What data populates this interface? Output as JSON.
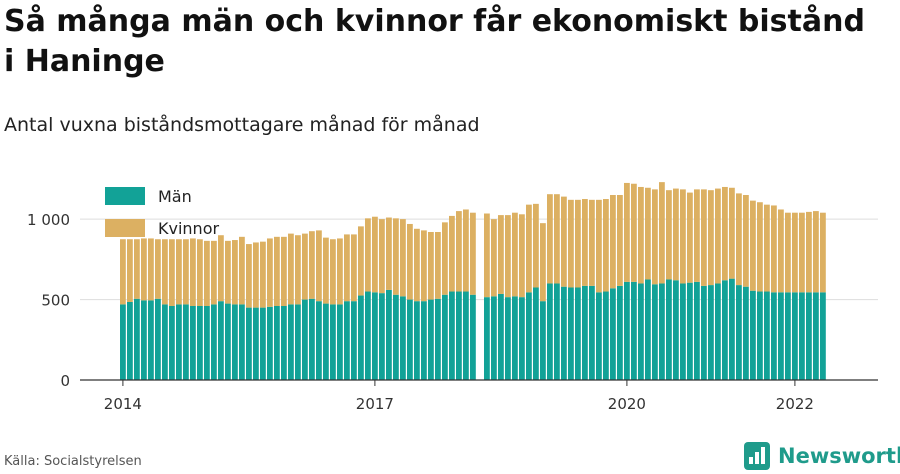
{
  "title": "Så många män och kvinnor får ekonomiskt bistånd i Haninge",
  "subtitle": "Antal vuxna biståndsmottagare månad för månad",
  "source": "Källa: Socialstyrelsen",
  "brand": {
    "name": "Newsworthy",
    "icon": "newsworthy-logo-icon"
  },
  "colors": {
    "men": "#12a297",
    "women": "#dcb062",
    "grid": "#dddddd",
    "axis": "#333333"
  },
  "chart_data": {
    "type": "bar",
    "stacked": true,
    "x_start": "2014-01",
    "x_labels": [
      "2014",
      "2017",
      "2020",
      "2022"
    ],
    "y_ticks": [
      {
        "value": 0,
        "label": "0"
      },
      {
        "value": 500,
        "label": "500"
      },
      {
        "value": 1000,
        "label": "1 000"
      }
    ],
    "ylim": [
      0,
      1150
    ],
    "grid": true,
    "legend_position": "top-left",
    "series": [
      {
        "name": "Män",
        "values": [
          470,
          485,
          505,
          495,
          495,
          505,
          470,
          460,
          470,
          470,
          460,
          460,
          460,
          470,
          490,
          475,
          470,
          470,
          450,
          450,
          450,
          455,
          460,
          460,
          470,
          470,
          500,
          505,
          490,
          475,
          470,
          470,
          490,
          490,
          525,
          550,
          545,
          540,
          560,
          530,
          520,
          500,
          490,
          490,
          500,
          505,
          530,
          550,
          550,
          550,
          530,
          null,
          515,
          520,
          535,
          515,
          520,
          515,
          545,
          575,
          490,
          600,
          600,
          580,
          575,
          575,
          585,
          585,
          545,
          550,
          570,
          585,
          610,
          610,
          600,
          625,
          595,
          600,
          625,
          620,
          600,
          605,
          610,
          585,
          590,
          600,
          620,
          630,
          590,
          580,
          555,
          550,
          550,
          545,
          545,
          545,
          545,
          545,
          545,
          545,
          545
        ]
      },
      {
        "name": "Kvinnor",
        "values": [
          405,
          390,
          370,
          385,
          385,
          370,
          405,
          415,
          405,
          405,
          420,
          415,
          405,
          395,
          410,
          390,
          400,
          420,
          395,
          405,
          410,
          425,
          430,
          430,
          440,
          430,
          410,
          420,
          440,
          410,
          405,
          410,
          415,
          415,
          430,
          455,
          470,
          460,
          450,
          475,
          480,
          470,
          450,
          440,
          420,
          415,
          450,
          470,
          500,
          510,
          510,
          null,
          520,
          480,
          490,
          510,
          520,
          515,
          545,
          520,
          485,
          555,
          555,
          560,
          545,
          545,
          540,
          535,
          575,
          575,
          580,
          565,
          615,
          610,
          600,
          570,
          590,
          630,
          555,
          570,
          585,
          560,
          575,
          600,
          590,
          590,
          580,
          565,
          570,
          570,
          560,
          555,
          540,
          540,
          515,
          495,
          495,
          495,
          500,
          505,
          495
        ]
      }
    ]
  }
}
